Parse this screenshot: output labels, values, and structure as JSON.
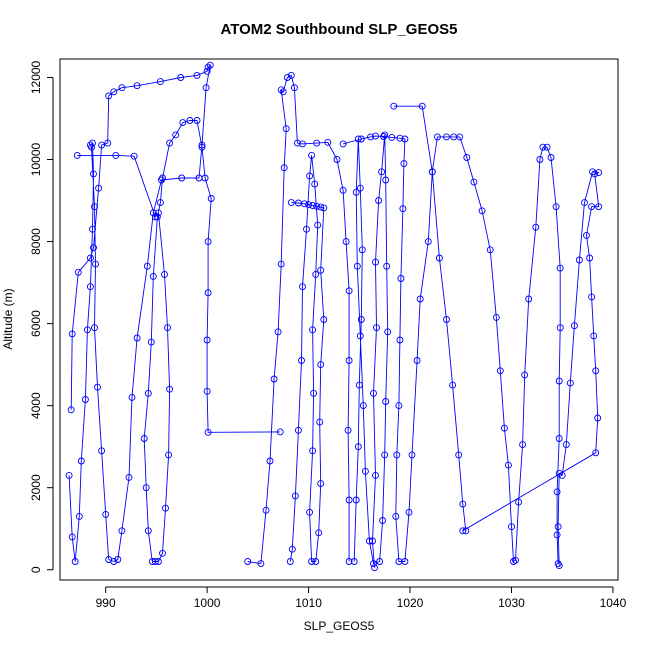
{
  "chart_data": {
    "type": "line",
    "title": "ATOM2 Southbound SLP_GEOS5",
    "xlabel": "SLP_GEOS5",
    "ylabel": "Altitude (m)",
    "xlim": [
      985.5,
      1040.5
    ],
    "ylim": [
      -250,
      12450
    ],
    "xticks": [
      990,
      1000,
      1010,
      1020,
      1030,
      1040
    ],
    "yticks": [
      0,
      2000,
      4000,
      6000,
      8000,
      10000,
      12000
    ],
    "grid": false,
    "marker": "open-circle",
    "line_color": "#0000ff",
    "series": [
      {
        "values": [
          [
            987.2,
            10100
          ],
          [
            991.0,
            10100
          ],
          [
            992.8,
            10080
          ],
          [
            994.9,
            8600
          ],
          [
            995.2,
            8700
          ],
          [
            995.8,
            7200
          ],
          [
            996.1,
            5900
          ],
          [
            996.3,
            4400
          ],
          [
            996.2,
            2800
          ],
          [
            995.9,
            1500
          ],
          [
            995.6,
            400
          ],
          [
            995.2,
            200
          ],
          [
            994.9,
            200
          ],
          [
            994.6,
            200
          ],
          [
            994.2,
            950
          ],
          [
            994.0,
            2000
          ],
          [
            993.8,
            3200
          ],
          [
            994.2,
            4300
          ],
          [
            994.5,
            5550
          ],
          [
            994.7,
            7150
          ],
          [
            995.1,
            8600
          ],
          [
            995.4,
            8950
          ],
          [
            995.6,
            9550
          ],
          [
            996.3,
            10400
          ],
          [
            996.9,
            10600
          ],
          [
            997.6,
            10900
          ],
          [
            998.3,
            10950
          ],
          [
            999.0,
            10950
          ],
          [
            999.5,
            10300
          ],
          [
            999.8,
            9550
          ],
          [
            1000.4,
            9050
          ],
          [
            1000.1,
            8000
          ],
          [
            1000.1,
            6750
          ],
          [
            1000.0,
            5600
          ],
          [
            1000.0,
            4350
          ],
          [
            1000.1,
            3350
          ],
          [
            1007.2,
            3360
          ]
        ]
      },
      {
        "values": [
          [
            986.6,
            3900
          ],
          [
            986.7,
            5750
          ],
          [
            987.3,
            7250
          ],
          [
            988.5,
            7600
          ],
          [
            988.8,
            7850
          ],
          [
            989.3,
            9300
          ],
          [
            989.6,
            10350
          ],
          [
            990.2,
            10400
          ],
          [
            990.3,
            11550
          ],
          [
            990.8,
            11650
          ],
          [
            991.6,
            11750
          ],
          [
            993.1,
            11800
          ],
          [
            995.4,
            11900
          ],
          [
            997.4,
            12000
          ],
          [
            999.0,
            12050
          ],
          [
            1000.0,
            12150
          ],
          [
            1000.1,
            12250
          ],
          [
            1000.3,
            12300
          ],
          [
            999.9,
            11750
          ],
          [
            999.5,
            10350
          ],
          [
            999.2,
            9550
          ],
          [
            997.5,
            9550
          ],
          [
            995.5,
            9500
          ],
          [
            994.7,
            8700
          ],
          [
            994.1,
            7400
          ],
          [
            993.1,
            5650
          ],
          [
            992.6,
            4200
          ],
          [
            992.3,
            2250
          ],
          [
            991.6,
            950
          ],
          [
            991.2,
            250
          ],
          [
            990.8,
            200
          ],
          [
            990.3,
            250
          ],
          [
            990.0,
            1350
          ],
          [
            989.6,
            2900
          ],
          [
            989.2,
            4450
          ],
          [
            988.9,
            5900
          ],
          [
            989.0,
            7450
          ],
          [
            988.9,
            8850
          ],
          [
            988.6,
            10300
          ],
          [
            988.5,
            10350
          ],
          [
            988.7,
            10400
          ],
          [
            988.8,
            9650
          ],
          [
            988.7,
            8300
          ],
          [
            988.5,
            6900
          ],
          [
            988.2,
            5850
          ],
          [
            988.0,
            4150
          ],
          [
            987.6,
            2650
          ],
          [
            987.4,
            1300
          ],
          [
            987.0,
            200
          ],
          [
            986.7,
            800
          ],
          [
            986.4,
            2300
          ]
        ]
      },
      {
        "values": [
          [
            1004.0,
            200
          ],
          [
            1005.3,
            150
          ],
          [
            1005.8,
            1450
          ],
          [
            1006.2,
            2650
          ],
          [
            1006.6,
            4650
          ],
          [
            1007.0,
            5800
          ],
          [
            1007.3,
            7450
          ],
          [
            1007.6,
            9800
          ],
          [
            1007.8,
            10750
          ],
          [
            1007.3,
            11700
          ],
          [
            1007.5,
            11650
          ],
          [
            1007.9,
            12000
          ],
          [
            1008.3,
            12050
          ],
          [
            1008.6,
            11750
          ],
          [
            1008.9,
            10400
          ],
          [
            1009.4,
            10380
          ],
          [
            1010.8,
            10400
          ],
          [
            1011.9,
            10420
          ],
          [
            1012.8,
            10000
          ],
          [
            1013.4,
            9250
          ],
          [
            1013.7,
            8000
          ],
          [
            1014.0,
            6800
          ],
          [
            1014.0,
            5100
          ],
          [
            1013.9,
            3400
          ],
          [
            1014.0,
            1700
          ],
          [
            1014.0,
            200
          ]
        ]
      },
      {
        "values": [
          [
            1008.3,
            8950
          ],
          [
            1009.0,
            8940
          ],
          [
            1009.6,
            8920
          ],
          [
            1010.0,
            8900
          ],
          [
            1010.4,
            8880
          ],
          [
            1010.8,
            8860
          ],
          [
            1011.2,
            8840
          ],
          [
            1011.5,
            8820
          ],
          [
            1011.2,
            7300
          ],
          [
            1011.5,
            6100
          ],
          [
            1011.2,
            5000
          ],
          [
            1011.1,
            3600
          ],
          [
            1011.2,
            2100
          ],
          [
            1011.0,
            900
          ],
          [
            1010.7,
            200
          ],
          [
            1010.3,
            200
          ],
          [
            1010.1,
            1400
          ],
          [
            1010.4,
            2900
          ],
          [
            1010.5,
            4300
          ],
          [
            1010.4,
            5850
          ],
          [
            1010.7,
            7200
          ],
          [
            1010.9,
            8400
          ],
          [
            1010.6,
            9400
          ],
          [
            1010.3,
            10100
          ],
          [
            1010.1,
            9600
          ],
          [
            1009.8,
            8300
          ],
          [
            1009.4,
            6900
          ],
          [
            1009.3,
            5100
          ],
          [
            1009.0,
            3400
          ],
          [
            1008.7,
            1800
          ],
          [
            1008.4,
            500
          ],
          [
            1008.2,
            200
          ]
        ]
      },
      {
        "values": [
          [
            1013.4,
            10380
          ],
          [
            1015.2,
            10500
          ],
          [
            1016.1,
            10550
          ],
          [
            1016.6,
            10570
          ],
          [
            1017.4,
            10560
          ],
          [
            1018.2,
            10540
          ],
          [
            1019.0,
            10520
          ],
          [
            1019.5,
            10500
          ],
          [
            1019.4,
            9900
          ],
          [
            1019.3,
            8800
          ],
          [
            1019.1,
            7100
          ],
          [
            1019.0,
            5600
          ],
          [
            1018.9,
            4000
          ],
          [
            1018.7,
            2800
          ],
          [
            1018.6,
            1300
          ],
          [
            1018.9,
            200
          ],
          [
            1019.5,
            200
          ],
          [
            1019.9,
            1400
          ],
          [
            1020.2,
            2800
          ],
          [
            1020.7,
            5100
          ],
          [
            1021.0,
            6600
          ],
          [
            1021.8,
            8000
          ],
          [
            1022.2,
            9700
          ],
          [
            1022.7,
            10550
          ],
          [
            1023.6,
            10550
          ],
          [
            1024.3,
            10550
          ],
          [
            1024.9,
            10550
          ],
          [
            1025.6,
            10050
          ],
          [
            1026.3,
            9450
          ],
          [
            1027.1,
            8750
          ],
          [
            1027.9,
            7800
          ],
          [
            1028.5,
            6150
          ],
          [
            1028.9,
            4850
          ],
          [
            1029.3,
            3450
          ],
          [
            1029.7,
            2550
          ],
          [
            1030.0,
            1050
          ],
          [
            1030.2,
            200
          ],
          [
            1030.4,
            230
          ],
          [
            1030.7,
            1650
          ],
          [
            1031.1,
            3050
          ],
          [
            1031.3,
            4750
          ],
          [
            1031.7,
            6600
          ],
          [
            1032.4,
            8350
          ],
          [
            1032.8,
            10000
          ],
          [
            1033.1,
            10300
          ],
          [
            1033.5,
            10300
          ],
          [
            1033.9,
            10050
          ],
          [
            1034.4,
            8850
          ],
          [
            1034.8,
            7350
          ],
          [
            1034.8,
            5900
          ],
          [
            1034.7,
            4600
          ],
          [
            1034.7,
            3200
          ],
          [
            1034.5,
            1900
          ],
          [
            1034.5,
            850
          ],
          [
            1034.6,
            150
          ]
        ]
      },
      {
        "values": [
          [
            1016.5,
            50
          ],
          [
            1016.3,
            700
          ],
          [
            1016.6,
            2300
          ],
          [
            1016.4,
            4300
          ],
          [
            1016.7,
            5900
          ],
          [
            1016.6,
            7500
          ],
          [
            1016.9,
            9000
          ],
          [
            1017.2,
            9700
          ],
          [
            1017.5,
            10600
          ],
          [
            1017.6,
            9500
          ],
          [
            1017.7,
            7400
          ],
          [
            1017.8,
            5800
          ],
          [
            1017.6,
            4100
          ],
          [
            1017.5,
            2800
          ],
          [
            1017.3,
            1200
          ],
          [
            1017.0,
            200
          ],
          [
            1016.4,
            150
          ],
          [
            1016.0,
            700
          ],
          [
            1015.6,
            2400
          ],
          [
            1015.4,
            4000
          ],
          [
            1015.1,
            5700
          ],
          [
            1014.8,
            7400
          ],
          [
            1014.7,
            9200
          ],
          [
            1014.9,
            10500
          ],
          [
            1015.1,
            9300
          ],
          [
            1015.3,
            7800
          ],
          [
            1015.2,
            6100
          ],
          [
            1015.0,
            4500
          ],
          [
            1014.9,
            3000
          ],
          [
            1014.7,
            1700
          ],
          [
            1014.5,
            200
          ]
        ]
      },
      {
        "values": [
          [
            1025.2,
            950
          ],
          [
            1038.3,
            2850
          ],
          [
            1038.5,
            3700
          ],
          [
            1038.3,
            4850
          ],
          [
            1038.1,
            5700
          ],
          [
            1037.9,
            6650
          ],
          [
            1037.7,
            7600
          ],
          [
            1037.4,
            8150
          ],
          [
            1037.9,
            8850
          ],
          [
            1038.6,
            8850
          ],
          [
            1038.2,
            9650
          ],
          [
            1038.6,
            9680
          ],
          [
            1038.0,
            9700
          ],
          [
            1037.2,
            8950
          ],
          [
            1036.7,
            7550
          ],
          [
            1036.2,
            5950
          ],
          [
            1035.8,
            4550
          ],
          [
            1035.4,
            3050
          ],
          [
            1035.0,
            2300
          ],
          [
            1034.7,
            2350
          ],
          [
            1034.6,
            1050
          ],
          [
            1034.7,
            100
          ]
        ]
      },
      {
        "values": [
          [
            1018.4,
            11300
          ],
          [
            1021.2,
            11300
          ],
          [
            1022.2,
            9700
          ],
          [
            1022.9,
            7600
          ],
          [
            1023.6,
            6100
          ],
          [
            1024.2,
            4500
          ],
          [
            1024.8,
            2800
          ],
          [
            1025.2,
            1600
          ],
          [
            1025.5,
            950
          ]
        ]
      }
    ]
  }
}
